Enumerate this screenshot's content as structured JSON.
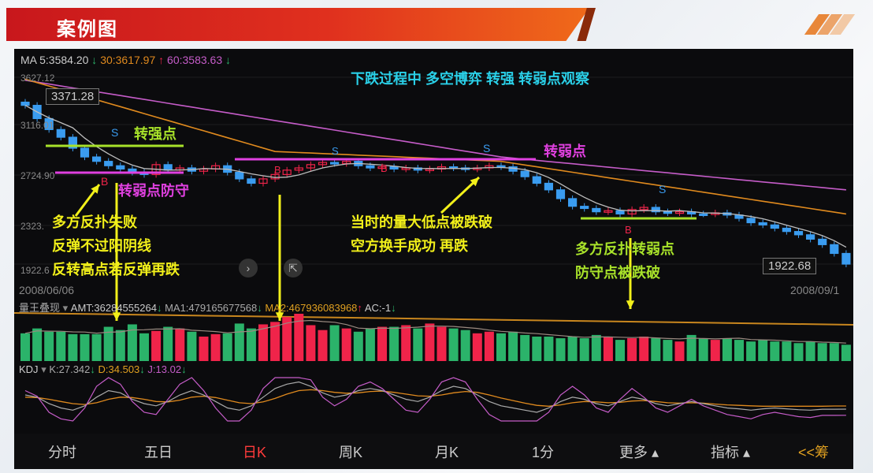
{
  "slide": {
    "title": "案例图"
  },
  "header": {
    "ma5": "MA 5:3584.20",
    "ma5_arrow": "↓",
    "ma30": "30:3617.97",
    "ma30_arrow": "↑",
    "ma60": "60:3583.63",
    "ma60_arrow": "↓"
  },
  "price_axis": [
    "3627.12",
    "3116.01",
    "2724.90",
    "2323.",
    "1922.6"
  ],
  "price_boxes": {
    "high": "3371.28",
    "last": "1922.68"
  },
  "dates": {
    "start": "2008/06/06",
    "end": "2008/09/1"
  },
  "volume_header": {
    "name": "量王叠现",
    "dropdown": "▾",
    "amt": "AMT:36284555264",
    "amt_arrow": "↓",
    "ma1": "MA1:479165677568",
    "ma1_arrow": "↓",
    "ma2": "MA2:467936083968",
    "ma2_arrow": "↑",
    "ac": "AC:-1",
    "ac_arrow": "↓"
  },
  "kdj_header": {
    "name": "KDJ",
    "dropdown": "▾",
    "k": "K:27.342",
    "k_arrow": "↓",
    "d": "D:34.503",
    "d_arrow": "↓",
    "j": "J:13.02",
    "j_arrow": "↓"
  },
  "annotations": {
    "title": "下跌过程中 多空博弈 转强 转弱点观察",
    "strong_point": "转强点",
    "weak_defense": "转弱点防守",
    "fail_1": "多方反扑失败",
    "fail_2": "反弹不过阳阴线",
    "fail_3": "反转高点若反弹再跌",
    "weak_point": "转弱点",
    "break_1": "当时的量大低点被跌破",
    "break_2": "空方换手成功  再跌",
    "counter_1": "多方反扑转弱点",
    "counter_2": "防守点被跌破",
    "sell_marker": "S",
    "buy_marker": "B"
  },
  "tabs": [
    {
      "label": "分时",
      "active": false
    },
    {
      "label": "五日",
      "active": false
    },
    {
      "label": "日K",
      "active": true
    },
    {
      "label": "周K",
      "active": false
    },
    {
      "label": "月K",
      "active": false
    },
    {
      "label": "1分",
      "active": false
    },
    {
      "label": "更多 ▴",
      "active": false
    },
    {
      "label": "指标 ▴",
      "active": false
    },
    {
      "label": "<<筹",
      "active": false
    }
  ],
  "colors": {
    "up": "#f0244a",
    "down": "#3a9cf0",
    "vol_down": "#2bb36a",
    "ma5": "#bdbdbd",
    "ma30": "#e08a1e",
    "ma60": "#c55cc8",
    "accent_active": "#ff3b3b",
    "annotation_yellow": "#f2f01a",
    "annotation_green": "#a8e22a",
    "annotation_magenta": "#e040e0",
    "annotation_cyan": "#2ad0e8"
  },
  "chart_data": {
    "type": "candlestick",
    "ylim": [
      1922.68,
      3627.12
    ],
    "first_open": 3400,
    "close": [
      3371,
      3250,
      3150,
      3080,
      2980,
      2900,
      2860,
      2820,
      2790,
      2760,
      2740,
      2830,
      2780,
      2800,
      2770,
      2790,
      2820,
      2760,
      2700,
      2660,
      2700,
      2740,
      2780,
      2800,
      2830,
      2850,
      2840,
      2860,
      2820,
      2800,
      2810,
      2790,
      2800,
      2780,
      2790,
      2810,
      2800,
      2790,
      2800,
      2820,
      2810,
      2770,
      2720,
      2660,
      2600,
      2520,
      2450,
      2430,
      2400,
      2410,
      2380,
      2420,
      2440,
      2400,
      2390,
      2400,
      2380,
      2380,
      2390,
      2370,
      2340,
      2300,
      2280,
      2250,
      2220,
      2190,
      2150,
      2100,
      2020,
      1922.68
    ],
    "ma30": [
      [
        0,
        3610
      ],
      [
        21,
        2950
      ],
      [
        40,
        2860
      ],
      [
        69,
        2380
      ]
    ],
    "ma60": [
      [
        0,
        3600
      ],
      [
        40,
        2900
      ],
      [
        69,
        2600
      ]
    ],
    "volume": [
      34,
      40,
      36,
      36,
      33,
      33,
      33,
      42,
      38,
      45,
      34,
      37,
      42,
      40,
      36,
      30,
      33,
      34,
      46,
      40,
      45,
      48,
      54,
      58,
      44,
      38,
      44,
      40,
      36,
      40,
      42,
      42,
      44,
      40,
      46,
      42,
      40,
      38,
      34,
      36,
      34,
      36,
      32,
      30,
      30,
      28,
      30,
      28,
      32,
      30,
      26,
      28,
      30,
      28,
      26,
      24,
      32,
      28,
      26,
      28,
      26,
      24,
      26,
      24,
      24,
      22,
      24,
      22,
      22,
      20
    ],
    "kdj": {
      "k": [
        60,
        55,
        40,
        30,
        25,
        35,
        55,
        70,
        65,
        50,
        40,
        35,
        45,
        60,
        70,
        60,
        45,
        30,
        25,
        35,
        55,
        75,
        85,
        90,
        80,
        65,
        55,
        60,
        70,
        75,
        70,
        60,
        50,
        45,
        55,
        70,
        80,
        75,
        60,
        45,
        35,
        30,
        25,
        20,
        30,
        45,
        55,
        50,
        40,
        35,
        45,
        55,
        50,
        40,
        35,
        40,
        45,
        40,
        35,
        30,
        28,
        25,
        28,
        30,
        28,
        26,
        25,
        27,
        27,
        27.342
      ],
      "d": [
        55,
        54,
        50,
        45,
        40,
        38,
        42,
        50,
        55,
        54,
        50,
        45,
        44,
        48,
        55,
        57,
        54,
        48,
        42,
        40,
        44,
        52,
        62,
        70,
        72,
        70,
        66,
        64,
        65,
        68,
        69,
        66,
        62,
        58,
        57,
        60,
        65,
        68,
        66,
        60,
        53,
        47,
        41,
        36,
        34,
        37,
        42,
        45,
        44,
        42,
        43,
        46,
        47,
        45,
        42,
        41,
        42,
        41,
        39,
        37,
        36,
        35,
        34,
        34,
        34,
        34,
        34,
        34,
        34.5,
        34.503
      ],
      "j": [
        70,
        57,
        20,
        5,
        0,
        30,
        80,
        100,
        85,
        45,
        20,
        15,
        50,
        85,
        100,
        70,
        30,
        0,
        0,
        25,
        75,
        100,
        100,
        100,
        95,
        55,
        35,
        50,
        80,
        90,
        75,
        50,
        25,
        20,
        50,
        90,
        100,
        90,
        50,
        15,
        0,
        0,
        0,
        0,
        20,
        60,
        80,
        60,
        30,
        20,
        50,
        75,
        55,
        30,
        20,
        35,
        50,
        35,
        25,
        15,
        10,
        5,
        15,
        20,
        15,
        10,
        8,
        13,
        13,
        13.02
      ]
    }
  }
}
